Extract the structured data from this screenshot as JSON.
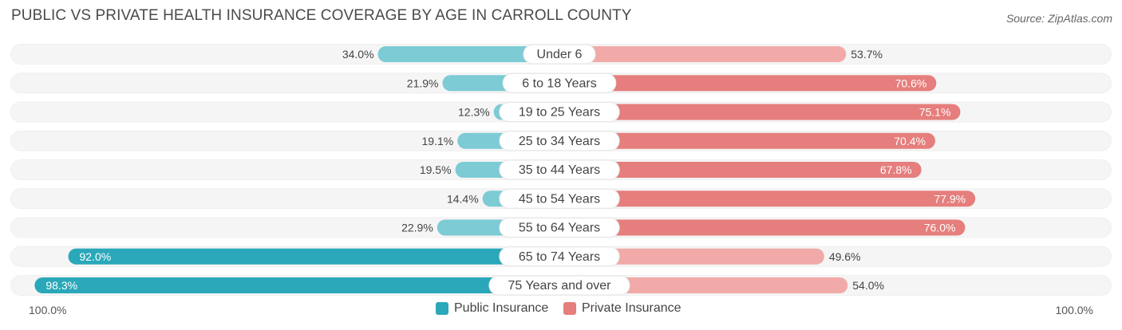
{
  "title": "PUBLIC VS PRIVATE HEALTH INSURANCE COVERAGE BY AGE IN CARROLL COUNTY",
  "source": "Source: ZipAtlas.com",
  "colors": {
    "public": "#2aa8b9",
    "public_light": "#7ccbd5",
    "private": "#e57e7c",
    "private_light": "#f1aaa8",
    "track": "#efefef"
  },
  "chart_data": {
    "type": "bar",
    "orientation": "horizontal-diverging",
    "categories": [
      "Under 6",
      "6 to 18 Years",
      "19 to 25 Years",
      "25 to 34 Years",
      "35 to 44 Years",
      "45 to 54 Years",
      "55 to 64 Years",
      "65 to 74 Years",
      "75 Years and over"
    ],
    "series": [
      {
        "name": "Public Insurance",
        "values": [
          34.0,
          21.9,
          12.3,
          19.1,
          19.5,
          14.4,
          22.9,
          92.0,
          98.3
        ],
        "labels": [
          "34.0%",
          "21.9%",
          "12.3%",
          "19.1%",
          "19.5%",
          "14.4%",
          "22.9%",
          "92.0%",
          "98.3%"
        ]
      },
      {
        "name": "Private Insurance",
        "values": [
          53.7,
          70.6,
          75.1,
          70.4,
          67.8,
          77.9,
          76.0,
          49.6,
          54.0
        ],
        "labels": [
          "53.7%",
          "70.6%",
          "75.1%",
          "70.4%",
          "67.8%",
          "77.9%",
          "76.0%",
          "49.6%",
          "54.0%"
        ]
      }
    ],
    "xlim": [
      0,
      100
    ],
    "axis_left_label": "100.0%",
    "axis_right_label": "100.0%",
    "legend": [
      "Public Insurance",
      "Private Insurance"
    ]
  }
}
